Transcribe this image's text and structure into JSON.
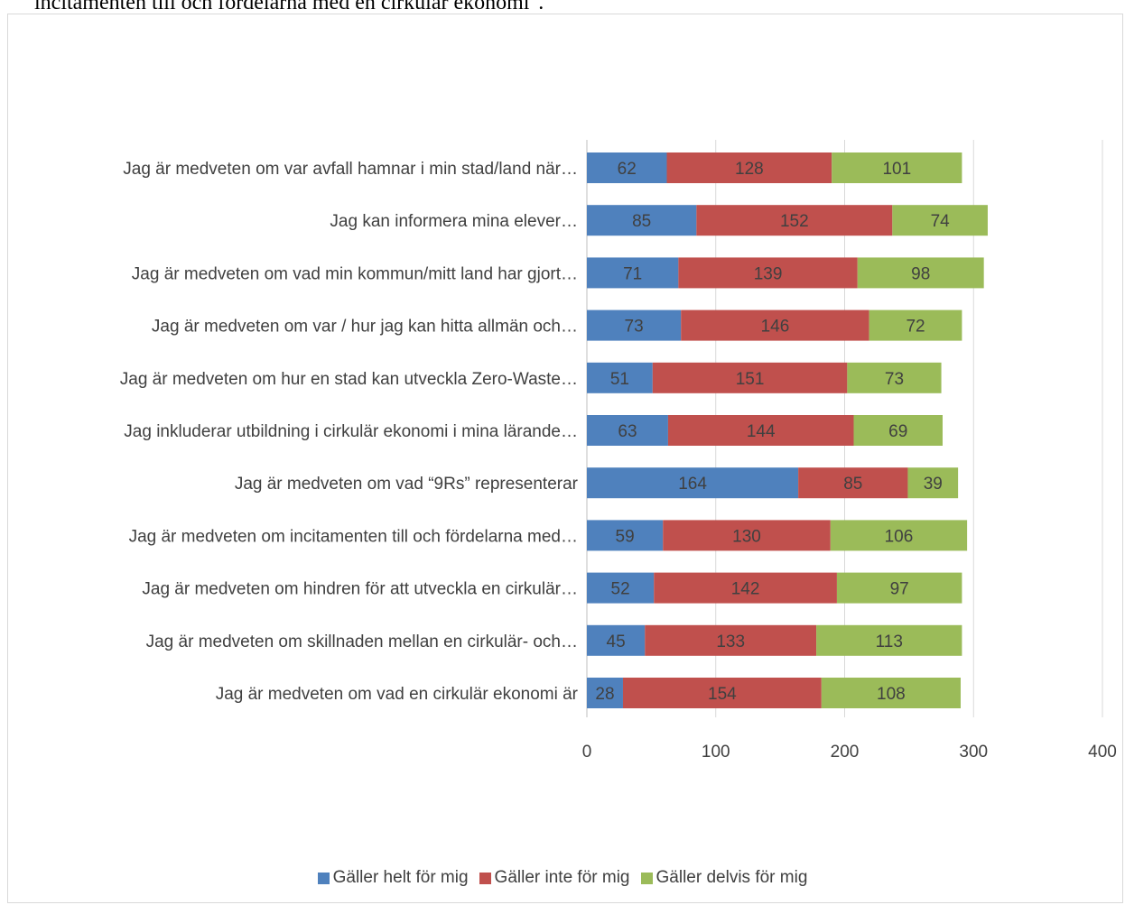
{
  "header_text": "incitamenten till och fördelarna med en cirkulär ekonomi\".",
  "chart_data": {
    "type": "bar",
    "orientation": "horizontal",
    "stacked": true,
    "categories": [
      "Jag är medveten om var avfall hamnar i min stad/land när…",
      "Jag kan informera mina elever…",
      "Jag är medveten om vad min kommun/mitt land har gjort…",
      "Jag är medveten om var / hur jag kan hitta allmän och…",
      "Jag är medveten om hur en stad kan utveckla Zero-Waste…",
      "Jag inkluderar utbildning i cirkulär ekonomi i mina lärande…",
      "Jag är medveten om vad “9Rs” representerar",
      "Jag är medveten om incitamenten till och fördelarna med…",
      "Jag är medveten om hindren för att utveckla en cirkulär…",
      "Jag är medveten om skillnaden mellan en cirkulär- och…",
      "Jag är medveten om vad en cirkulär ekonomi är"
    ],
    "series": [
      {
        "name": "Gäller helt för mig",
        "color": "#4f81bd",
        "values": [
          62,
          85,
          71,
          73,
          51,
          63,
          164,
          59,
          52,
          45,
          28
        ]
      },
      {
        "name": "Gäller inte för mig",
        "color": "#c0504d",
        "values": [
          128,
          152,
          139,
          146,
          151,
          144,
          85,
          130,
          142,
          133,
          154
        ]
      },
      {
        "name": "Gäller delvis för mig",
        "color": "#9bbb59",
        "values": [
          101,
          74,
          98,
          72,
          73,
          69,
          39,
          106,
          97,
          113,
          108
        ]
      }
    ],
    "xlim": [
      0,
      400
    ],
    "xticks": [
      "0",
      "100",
      "200",
      "300",
      "400"
    ],
    "grid": true,
    "legend_position": "bottom"
  }
}
